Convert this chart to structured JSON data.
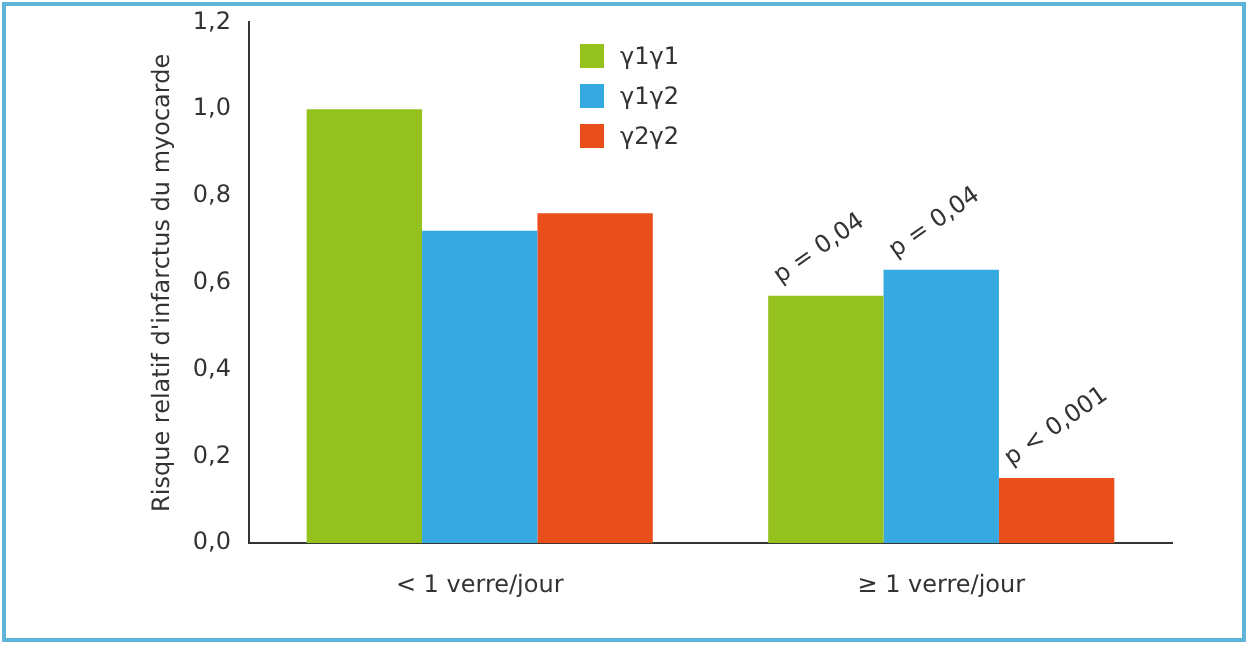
{
  "chart_data": {
    "type": "bar",
    "ylabel": "Risque relatif d'infarctus du myocarde",
    "categories": [
      "< 1 verre/jour",
      "≥ 1 verre/jour"
    ],
    "series": [
      {
        "name": "γ1γ1",
        "color": "#95c11f",
        "values": [
          1.0,
          0.57
        ]
      },
      {
        "name": "γ1γ2",
        "color": "#36a9e1",
        "values": [
          0.72,
          0.63
        ]
      },
      {
        "name": "γ2γ2",
        "color": "#e94e1b",
        "values": [
          0.76,
          0.15
        ]
      }
    ],
    "ylim": [
      0,
      1.2
    ],
    "yticks": [
      {
        "value": 0,
        "label": "0,0"
      },
      {
        "value": 0.2,
        "label": "0,2"
      },
      {
        "value": 0.4,
        "label": "0,4"
      },
      {
        "value": 0.6,
        "label": "0,6"
      },
      {
        "value": 0.8,
        "label": "0,8"
      },
      {
        "value": 1,
        "label": "1,0"
      },
      {
        "value": 1.2,
        "label": "1,2"
      }
    ],
    "grid": false,
    "legend": "top",
    "annotations": [
      "p = 0,04",
      "p = 0,04",
      "p < 0,001"
    ]
  }
}
